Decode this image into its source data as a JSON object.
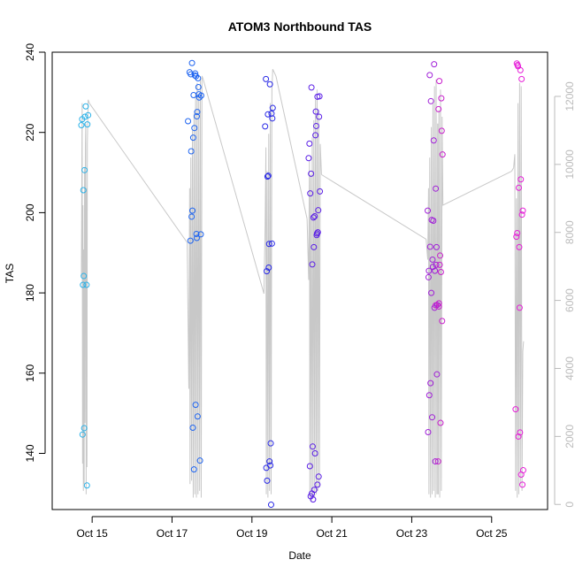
{
  "chart_data": {
    "type": "scatter",
    "title": "ATOM3 Northbound TAS",
    "xlabel": "Date",
    "ylabel": "TAS",
    "x_unit": "days (October)",
    "xlim": [
      14.0,
      26.4
    ],
    "ylim": [
      126,
      240
    ],
    "y2lim": [
      -150,
      13300
    ],
    "x_ticks": [
      {
        "value": 15,
        "label": "Oct 15"
      },
      {
        "value": 17,
        "label": "Oct 17"
      },
      {
        "value": 19,
        "label": "Oct 19"
      },
      {
        "value": 21,
        "label": "Oct 21"
      },
      {
        "value": 23,
        "label": "Oct 23"
      },
      {
        "value": 25,
        "label": "Oct 25"
      }
    ],
    "y_ticks": [
      140,
      160,
      180,
      200,
      220,
      240
    ],
    "y2_ticks": [
      0,
      2000,
      4000,
      6000,
      8000,
      10000,
      12000
    ],
    "grid": false,
    "legend": "none",
    "secondary_series_color": "#c8c8c8",
    "flights": [
      {
        "color": "#29b1e8",
        "tas_points": [
          [
            14.73,
            221.8
          ],
          [
            14.75,
            223.3
          ],
          [
            14.76,
            144.7
          ],
          [
            14.77,
            182.0
          ],
          [
            14.78,
            205.6
          ],
          [
            14.79,
            184.2
          ],
          [
            14.8,
            146.3
          ],
          [
            14.81,
            210.6
          ],
          [
            14.82,
            223.9
          ],
          [
            14.84,
            226.5
          ],
          [
            14.86,
            182.0
          ],
          [
            14.87,
            132.0
          ],
          [
            14.88,
            222.0
          ],
          [
            14.9,
            224.3
          ]
        ],
        "alt_path": [
          [
            14.73,
            6700
          ],
          [
            14.75,
            11800
          ],
          [
            14.76,
            1200
          ],
          [
            14.77,
            8800
          ],
          [
            14.78,
            400
          ],
          [
            14.79,
            7500
          ],
          [
            14.8,
            600
          ],
          [
            14.81,
            9900
          ],
          [
            14.82,
            2400
          ],
          [
            14.83,
            10500
          ],
          [
            14.84,
            11200
          ],
          [
            14.85,
            300
          ],
          [
            14.86,
            9300
          ],
          [
            14.87,
            1100
          ],
          [
            14.88,
            10600
          ],
          [
            14.9,
            11900
          ],
          [
            14.93,
            11800
          ]
        ]
      },
      {
        "color": "#1e64f0",
        "tas_points": [
          [
            17.4,
            222.8
          ],
          [
            17.44,
            235.0
          ],
          [
            17.46,
            193.0
          ],
          [
            17.47,
            234.5
          ],
          [
            17.48,
            215.3
          ],
          [
            17.5,
            237.3
          ],
          [
            17.52,
            146.4
          ],
          [
            17.53,
            218.7
          ],
          [
            17.54,
            229.3
          ],
          [
            17.55,
            136.0
          ],
          [
            17.56,
            221.1
          ],
          [
            17.57,
            234.2
          ],
          [
            17.58,
            234.7
          ],
          [
            17.59,
            152.1
          ],
          [
            17.6,
            234.0
          ],
          [
            17.61,
            194.7
          ],
          [
            17.62,
            224.0
          ],
          [
            17.63,
            225.1
          ],
          [
            17.64,
            149.2
          ],
          [
            17.65,
            233.5
          ],
          [
            17.66,
            231.3
          ],
          [
            17.67,
            229.5
          ],
          [
            17.68,
            228.7
          ],
          [
            17.7,
            138.2
          ],
          [
            17.72,
            194.6
          ],
          [
            17.49,
            199.0
          ],
          [
            17.51,
            200.5
          ],
          [
            17.62,
            193.7
          ],
          [
            17.73,
            229.2
          ]
        ],
        "alt_path": [
          [
            17.38,
            7700
          ],
          [
            17.42,
            3400
          ],
          [
            17.44,
            9300
          ],
          [
            17.45,
            600
          ],
          [
            17.47,
            10200
          ],
          [
            17.49,
            700
          ],
          [
            17.51,
            11000
          ],
          [
            17.53,
            200
          ],
          [
            17.55,
            11500
          ],
          [
            17.57,
            300
          ],
          [
            17.59,
            12100
          ],
          [
            17.61,
            200
          ],
          [
            17.63,
            12400
          ],
          [
            17.65,
            300
          ],
          [
            17.67,
            12000
          ],
          [
            17.69,
            400
          ],
          [
            17.71,
            12500
          ],
          [
            17.73,
            200
          ],
          [
            17.75,
            12600
          ],
          [
            17.78,
            12500
          ]
        ]
      },
      {
        "color": "#2828e6",
        "tas_points": [
          [
            19.33,
            221.5
          ],
          [
            19.35,
            233.3
          ],
          [
            19.36,
            136.4
          ],
          [
            19.37,
            185.4
          ],
          [
            19.38,
            133.2
          ],
          [
            19.39,
            209.0
          ],
          [
            19.4,
            224.5
          ],
          [
            19.41,
            209.2
          ],
          [
            19.42,
            186.3
          ],
          [
            19.43,
            192.2
          ],
          [
            19.44,
            138.0
          ],
          [
            19.45,
            232.0
          ],
          [
            19.46,
            137.0
          ],
          [
            19.47,
            142.5
          ],
          [
            19.48,
            127.2
          ],
          [
            19.49,
            224.7
          ],
          [
            19.5,
            192.3
          ],
          [
            19.51,
            223.5
          ],
          [
            19.52,
            226.1
          ]
        ],
        "alt_path": [
          [
            19.3,
            6200
          ],
          [
            19.33,
            8200
          ],
          [
            19.35,
            10500
          ],
          [
            19.36,
            300
          ],
          [
            19.38,
            9800
          ],
          [
            19.4,
            200
          ],
          [
            19.42,
            10900
          ],
          [
            19.44,
            400
          ],
          [
            19.46,
            11800
          ],
          [
            19.48,
            300
          ],
          [
            19.5,
            12200
          ],
          [
            19.52,
            12800
          ],
          [
            19.6,
            12600
          ]
        ]
      },
      {
        "color": "#5a1ee6",
        "tas_points": [
          [
            20.42,
            213.6
          ],
          [
            20.44,
            217.2
          ],
          [
            20.45,
            136.8
          ],
          [
            20.46,
            204.8
          ],
          [
            20.47,
            129.3
          ],
          [
            20.48,
            209.7
          ],
          [
            20.49,
            231.2
          ],
          [
            20.5,
            130.0
          ],
          [
            20.51,
            187.1
          ],
          [
            20.52,
            141.7
          ],
          [
            20.53,
            128.5
          ],
          [
            20.54,
            198.8
          ],
          [
            20.55,
            191.4
          ],
          [
            20.56,
            130.9
          ],
          [
            20.57,
            199.1
          ],
          [
            20.58,
            140.0
          ],
          [
            20.59,
            219.3
          ],
          [
            20.6,
            225.2
          ],
          [
            20.61,
            221.6
          ],
          [
            20.62,
            194.4
          ],
          [
            20.63,
            194.8
          ],
          [
            20.64,
            132.2
          ],
          [
            20.65,
            195.1
          ],
          [
            20.66,
            200.6
          ],
          [
            20.67,
            134.2
          ],
          [
            20.68,
            223.9
          ],
          [
            20.69,
            229.0
          ],
          [
            20.7,
            205.3
          ],
          [
            20.64,
            228.9
          ]
        ],
        "alt_path": [
          [
            20.38,
            8400
          ],
          [
            20.42,
            6600
          ],
          [
            20.44,
            10100
          ],
          [
            20.45,
            200
          ],
          [
            20.47,
            9700
          ],
          [
            20.49,
            100
          ],
          [
            20.51,
            10800
          ],
          [
            20.53,
            300
          ],
          [
            20.55,
            11300
          ],
          [
            20.57,
            200
          ],
          [
            20.59,
            11900
          ],
          [
            20.61,
            300
          ],
          [
            20.63,
            12200
          ],
          [
            20.65,
            400
          ],
          [
            20.67,
            11600
          ],
          [
            20.69,
            500
          ],
          [
            20.71,
            10600
          ],
          [
            20.74,
            9700
          ]
        ]
      },
      {
        "color": "#a020d8",
        "tas_points": [
          [
            23.4,
            200.5
          ],
          [
            23.41,
            145.3
          ],
          [
            23.42,
            183.9
          ],
          [
            23.43,
            185.5
          ],
          [
            23.44,
            154.5
          ],
          [
            23.45,
            234.3
          ],
          [
            23.46,
            191.5
          ],
          [
            23.47,
            157.5
          ],
          [
            23.48,
            227.8
          ],
          [
            23.49,
            180.0
          ],
          [
            23.5,
            198.2
          ],
          [
            23.51,
            149.0
          ],
          [
            23.52,
            188.3
          ],
          [
            23.53,
            186.5
          ],
          [
            23.54,
            198.0
          ],
          [
            23.55,
            218.0
          ],
          [
            23.56,
            237.0
          ],
          [
            23.57,
            176.3
          ],
          [
            23.58,
            185.5
          ],
          [
            23.59,
            138.0
          ],
          [
            23.6,
            206.0
          ],
          [
            23.61,
            187.0
          ],
          [
            23.62,
            191.4
          ],
          [
            23.63,
            159.7
          ],
          [
            23.64,
            177.0
          ]
        ],
        "alt_path": [
          [
            23.36,
            7800
          ],
          [
            23.4,
            7200
          ],
          [
            23.42,
            9300
          ],
          [
            23.43,
            300
          ],
          [
            23.45,
            10200
          ],
          [
            23.47,
            200
          ],
          [
            23.49,
            11100
          ],
          [
            23.51,
            300
          ],
          [
            23.53,
            11800
          ],
          [
            23.55,
            400
          ],
          [
            23.57,
            12300
          ],
          [
            23.59,
            200
          ],
          [
            23.61,
            12500
          ],
          [
            23.63,
            300
          ],
          [
            23.65,
            11200
          ]
        ]
      },
      {
        "color": "#c81ecc",
        "tas_points": [
          [
            23.66,
            138.0
          ],
          [
            23.67,
            225.8
          ],
          [
            23.68,
            177.4
          ],
          [
            23.69,
            232.8
          ],
          [
            23.7,
            187.0
          ],
          [
            23.71,
            189.3
          ],
          [
            23.72,
            147.6
          ],
          [
            23.73,
            185.2
          ],
          [
            23.74,
            228.5
          ],
          [
            23.75,
            220.4
          ],
          [
            23.76,
            173.0
          ],
          [
            23.77,
            214.5
          ],
          [
            23.6,
            176.9
          ],
          [
            23.68,
            176.6
          ]
        ],
        "alt_path": [
          [
            23.66,
            300
          ],
          [
            23.68,
            11600
          ],
          [
            23.7,
            200
          ],
          [
            23.72,
            12200
          ],
          [
            23.74,
            400
          ],
          [
            23.76,
            11400
          ],
          [
            23.78,
            8800
          ],
          [
            25.5,
            9800
          ]
        ]
      },
      {
        "color": "#e61ed8",
        "tas_points": [
          [
            25.6,
            151.0
          ],
          [
            25.62,
            194.0
          ],
          [
            25.63,
            237.2
          ],
          [
            25.64,
            194.9
          ],
          [
            25.65,
            236.8
          ],
          [
            25.66,
            236.5
          ],
          [
            25.67,
            144.2
          ],
          [
            25.68,
            206.2
          ],
          [
            25.69,
            191.4
          ],
          [
            25.7,
            176.3
          ],
          [
            25.71,
            145.2
          ],
          [
            25.72,
            235.5
          ],
          [
            25.73,
            208.3
          ],
          [
            25.74,
            134.7
          ],
          [
            25.75,
            233.3
          ],
          [
            25.76,
            199.5
          ],
          [
            25.77,
            132.2
          ],
          [
            25.78,
            200.5
          ],
          [
            25.79,
            135.8
          ]
        ],
        "alt_path": [
          [
            25.55,
            9900
          ],
          [
            25.58,
            10300
          ],
          [
            25.6,
            400
          ],
          [
            25.62,
            9000
          ],
          [
            25.64,
            200
          ],
          [
            25.66,
            11800
          ],
          [
            25.68,
            300
          ],
          [
            25.7,
            12400
          ],
          [
            25.72,
            600
          ],
          [
            25.74,
            12300
          ],
          [
            25.76,
            400
          ],
          [
            25.78,
            4500
          ],
          [
            25.8,
            4800
          ]
        ]
      }
    ]
  }
}
